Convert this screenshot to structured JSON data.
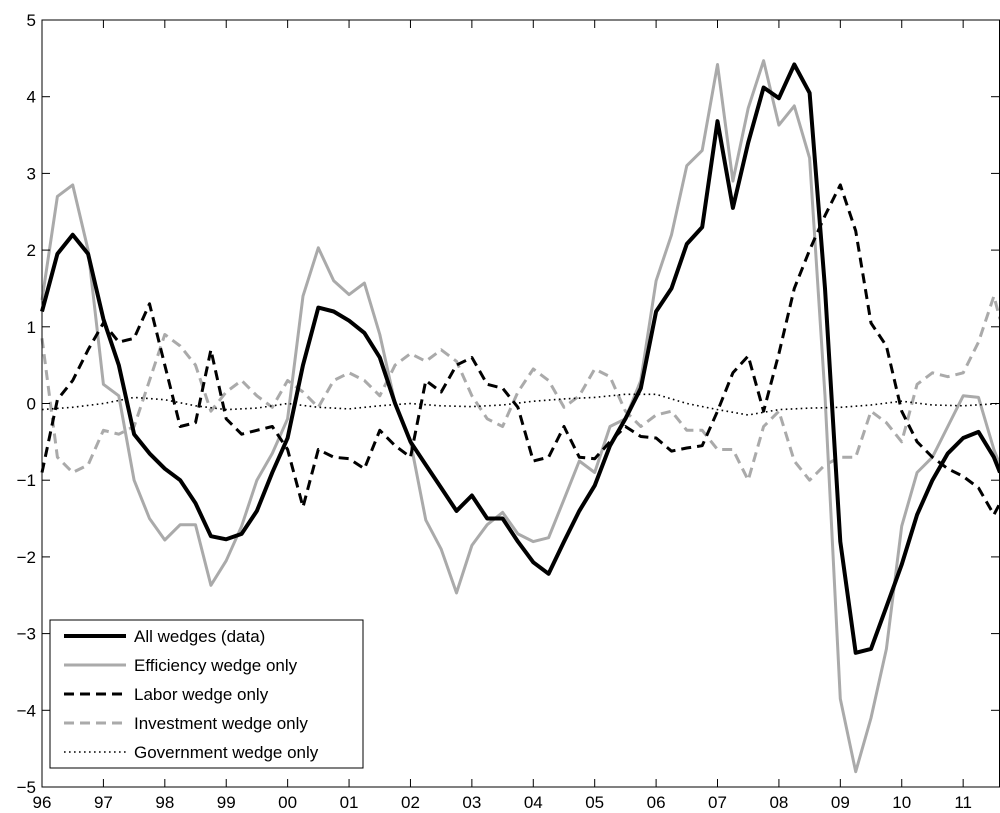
{
  "chart_data": {
    "type": "line",
    "x_ticks": [
      "96",
      "97",
      "98",
      "99",
      "00",
      "01",
      "02",
      "03",
      "04",
      "05",
      "06",
      "07",
      "08",
      "09",
      "10",
      "11"
    ],
    "y_ticks": [
      "5",
      "4",
      "3",
      "2",
      "1",
      "0",
      "−1",
      "−2",
      "−3",
      "−4",
      "−5"
    ],
    "xlim": [
      1996.0,
      2011.6
    ],
    "ylim": [
      -5,
      5
    ],
    "grid": false,
    "legend_position": "bottom-left",
    "series": [
      {
        "name": "All wedges (data)",
        "color": "#000000",
        "style": "solid",
        "weight": "thick",
        "points": [
          [
            1996.0,
            1.2
          ],
          [
            1996.25,
            1.95
          ],
          [
            1996.5,
            2.2
          ],
          [
            1996.75,
            1.95
          ],
          [
            1997.0,
            1.1
          ],
          [
            1997.25,
            0.5
          ],
          [
            1997.5,
            -0.4
          ],
          [
            1997.75,
            -0.65
          ],
          [
            1998.0,
            -0.85
          ],
          [
            1998.25,
            -1.0
          ],
          [
            1998.5,
            -1.3
          ],
          [
            1998.75,
            -1.73
          ],
          [
            1999.0,
            -1.77
          ],
          [
            1999.25,
            -1.7
          ],
          [
            1999.5,
            -1.4
          ],
          [
            1999.75,
            -0.9
          ],
          [
            2000.0,
            -0.45
          ],
          [
            2000.25,
            0.5
          ],
          [
            2000.5,
            1.25
          ],
          [
            2000.75,
            1.2
          ],
          [
            2001.0,
            1.08
          ],
          [
            2001.25,
            0.92
          ],
          [
            2001.5,
            0.6
          ],
          [
            2001.75,
            0.0
          ],
          [
            2002.0,
            -0.5
          ],
          [
            2002.25,
            -0.8
          ],
          [
            2002.5,
            -1.1
          ],
          [
            2002.75,
            -1.4
          ],
          [
            2003.0,
            -1.2
          ],
          [
            2003.25,
            -1.5
          ],
          [
            2003.5,
            -1.5
          ],
          [
            2003.75,
            -1.8
          ],
          [
            2004.0,
            -2.07
          ],
          [
            2004.25,
            -2.22
          ],
          [
            2004.5,
            -1.8
          ],
          [
            2004.75,
            -1.4
          ],
          [
            2005.0,
            -1.07
          ],
          [
            2005.25,
            -0.55
          ],
          [
            2005.5,
            -0.2
          ],
          [
            2005.75,
            0.2
          ],
          [
            2006.0,
            1.2
          ],
          [
            2006.25,
            1.5
          ],
          [
            2006.5,
            2.08
          ],
          [
            2006.75,
            2.3
          ],
          [
            2007.0,
            3.68
          ],
          [
            2007.25,
            2.55
          ],
          [
            2007.5,
            3.4
          ],
          [
            2007.75,
            4.12
          ],
          [
            2008.0,
            3.98
          ],
          [
            2008.25,
            4.42
          ],
          [
            2008.5,
            4.05
          ],
          [
            2008.75,
            1.5
          ],
          [
            2009.0,
            -1.8
          ],
          [
            2009.25,
            -3.25
          ],
          [
            2009.5,
            -3.2
          ],
          [
            2009.75,
            -2.65
          ],
          [
            2010.0,
            -2.1
          ],
          [
            2010.25,
            -1.45
          ],
          [
            2010.5,
            -1.0
          ],
          [
            2010.75,
            -0.65
          ],
          [
            2011.0,
            -0.45
          ],
          [
            2011.25,
            -0.37
          ],
          [
            2011.5,
            -0.7
          ],
          [
            2011.6,
            -0.9
          ]
        ]
      },
      {
        "name": "Efficiency wedge only",
        "color": "#aaaaaa",
        "style": "solid",
        "weight": "medium",
        "points": [
          [
            1996.0,
            1.35
          ],
          [
            1996.25,
            2.7
          ],
          [
            1996.5,
            2.85
          ],
          [
            1996.75,
            2.0
          ],
          [
            1997.0,
            0.25
          ],
          [
            1997.25,
            0.1
          ],
          [
            1997.5,
            -1.0
          ],
          [
            1997.75,
            -1.5
          ],
          [
            1998.0,
            -1.78
          ],
          [
            1998.25,
            -1.58
          ],
          [
            1998.5,
            -1.58
          ],
          [
            1998.75,
            -2.37
          ],
          [
            1999.0,
            -2.05
          ],
          [
            1999.25,
            -1.6
          ],
          [
            1999.5,
            -1.0
          ],
          [
            1999.75,
            -0.65
          ],
          [
            2000.0,
            -0.2
          ],
          [
            2000.25,
            1.4
          ],
          [
            2000.5,
            2.03
          ],
          [
            2000.75,
            1.6
          ],
          [
            2001.0,
            1.42
          ],
          [
            2001.25,
            1.57
          ],
          [
            2001.5,
            0.9
          ],
          [
            2001.75,
            0.0
          ],
          [
            2002.0,
            -0.5
          ],
          [
            2002.25,
            -1.52
          ],
          [
            2002.5,
            -1.9
          ],
          [
            2002.75,
            -2.47
          ],
          [
            2003.0,
            -1.85
          ],
          [
            2003.25,
            -1.58
          ],
          [
            2003.5,
            -1.42
          ],
          [
            2003.75,
            -1.7
          ],
          [
            2004.0,
            -1.8
          ],
          [
            2004.25,
            -1.75
          ],
          [
            2004.5,
            -1.25
          ],
          [
            2004.75,
            -0.75
          ],
          [
            2005.0,
            -0.9
          ],
          [
            2005.25,
            -0.3
          ],
          [
            2005.5,
            -0.2
          ],
          [
            2005.75,
            0.3
          ],
          [
            2006.0,
            1.6
          ],
          [
            2006.25,
            2.2
          ],
          [
            2006.5,
            3.1
          ],
          [
            2006.75,
            3.3
          ],
          [
            2007.0,
            4.42
          ],
          [
            2007.25,
            2.9
          ],
          [
            2007.5,
            3.85
          ],
          [
            2007.75,
            4.47
          ],
          [
            2008.0,
            3.63
          ],
          [
            2008.25,
            3.88
          ],
          [
            2008.5,
            3.2
          ],
          [
            2008.75,
            0.1
          ],
          [
            2009.0,
            -3.85
          ],
          [
            2009.25,
            -4.8
          ],
          [
            2009.5,
            -4.1
          ],
          [
            2009.75,
            -3.2
          ],
          [
            2010.0,
            -1.6
          ],
          [
            2010.25,
            -0.9
          ],
          [
            2010.5,
            -0.7
          ],
          [
            2010.75,
            -0.3
          ],
          [
            2011.0,
            0.1
          ],
          [
            2011.25,
            0.08
          ],
          [
            2011.5,
            -0.6
          ],
          [
            2011.6,
            -0.8
          ]
        ]
      },
      {
        "name": "Labor wedge only",
        "color": "#000000",
        "style": "dashed",
        "weight": "medium",
        "points": [
          [
            1996.0,
            -0.9
          ],
          [
            1996.25,
            0.05
          ],
          [
            1996.5,
            0.3
          ],
          [
            1996.75,
            0.7
          ],
          [
            1997.0,
            1.05
          ],
          [
            1997.25,
            0.8
          ],
          [
            1997.5,
            0.85
          ],
          [
            1997.75,
            1.3
          ],
          [
            1998.0,
            0.5
          ],
          [
            1998.25,
            -0.3
          ],
          [
            1998.5,
            -0.25
          ],
          [
            1998.75,
            0.7
          ],
          [
            1999.0,
            -0.2
          ],
          [
            1999.25,
            -0.4
          ],
          [
            1999.5,
            -0.35
          ],
          [
            1999.75,
            -0.3
          ],
          [
            2000.0,
            -0.6
          ],
          [
            2000.25,
            -1.35
          ],
          [
            2000.5,
            -0.6
          ],
          [
            2000.75,
            -0.7
          ],
          [
            2001.0,
            -0.72
          ],
          [
            2001.25,
            -0.85
          ],
          [
            2001.5,
            -0.35
          ],
          [
            2001.75,
            -0.55
          ],
          [
            2002.0,
            -0.7
          ],
          [
            2002.25,
            0.3
          ],
          [
            2002.5,
            0.15
          ],
          [
            2002.75,
            0.5
          ],
          [
            2003.0,
            0.6
          ],
          [
            2003.25,
            0.25
          ],
          [
            2003.5,
            0.2
          ],
          [
            2003.75,
            -0.05
          ],
          [
            2004.0,
            -0.75
          ],
          [
            2004.25,
            -0.7
          ],
          [
            2004.5,
            -0.3
          ],
          [
            2004.75,
            -0.7
          ],
          [
            2005.0,
            -0.72
          ],
          [
            2005.25,
            -0.5
          ],
          [
            2005.5,
            -0.3
          ],
          [
            2005.75,
            -0.43
          ],
          [
            2006.0,
            -0.45
          ],
          [
            2006.25,
            -0.62
          ],
          [
            2006.5,
            -0.58
          ],
          [
            2006.75,
            -0.55
          ],
          [
            2007.0,
            -0.1
          ],
          [
            2007.25,
            0.4
          ],
          [
            2007.5,
            0.62
          ],
          [
            2007.75,
            -0.1
          ],
          [
            2008.0,
            0.65
          ],
          [
            2008.25,
            1.5
          ],
          [
            2008.5,
            2.0
          ],
          [
            2008.75,
            2.45
          ],
          [
            2009.0,
            2.85
          ],
          [
            2009.25,
            2.25
          ],
          [
            2009.5,
            1.05
          ],
          [
            2009.75,
            0.75
          ],
          [
            2010.0,
            -0.1
          ],
          [
            2010.25,
            -0.5
          ],
          [
            2010.5,
            -0.7
          ],
          [
            2010.75,
            -0.85
          ],
          [
            2011.0,
            -0.95
          ],
          [
            2011.25,
            -1.1
          ],
          [
            2011.5,
            -1.45
          ],
          [
            2011.6,
            -1.3
          ]
        ]
      },
      {
        "name": "Investment wedge only",
        "color": "#aaaaaa",
        "style": "dashed",
        "weight": "medium",
        "points": [
          [
            1996.0,
            0.85
          ],
          [
            1996.25,
            -0.7
          ],
          [
            1996.5,
            -0.9
          ],
          [
            1996.75,
            -0.8
          ],
          [
            1997.0,
            -0.35
          ],
          [
            1997.25,
            -0.4
          ],
          [
            1997.5,
            -0.3
          ],
          [
            1997.75,
            0.3
          ],
          [
            1998.0,
            0.9
          ],
          [
            1998.25,
            0.75
          ],
          [
            1998.5,
            0.5
          ],
          [
            1998.75,
            -0.1
          ],
          [
            1999.0,
            0.15
          ],
          [
            1999.25,
            0.3
          ],
          [
            1999.5,
            0.1
          ],
          [
            1999.75,
            -0.05
          ],
          [
            2000.0,
            0.3
          ],
          [
            2000.25,
            0.15
          ],
          [
            2000.5,
            -0.05
          ],
          [
            2000.75,
            0.3
          ],
          [
            2001.0,
            0.4
          ],
          [
            2001.25,
            0.3
          ],
          [
            2001.5,
            0.1
          ],
          [
            2001.75,
            0.5
          ],
          [
            2002.0,
            0.65
          ],
          [
            2002.25,
            0.55
          ],
          [
            2002.5,
            0.7
          ],
          [
            2002.75,
            0.55
          ],
          [
            2003.0,
            0.1
          ],
          [
            2003.25,
            -0.2
          ],
          [
            2003.5,
            -0.3
          ],
          [
            2003.75,
            0.15
          ],
          [
            2004.0,
            0.45
          ],
          [
            2004.25,
            0.3
          ],
          [
            2004.5,
            -0.05
          ],
          [
            2004.75,
            0.1
          ],
          [
            2005.0,
            0.45
          ],
          [
            2005.25,
            0.35
          ],
          [
            2005.5,
            -0.1
          ],
          [
            2005.75,
            -0.3
          ],
          [
            2006.0,
            -0.15
          ],
          [
            2006.25,
            -0.1
          ],
          [
            2006.5,
            -0.35
          ],
          [
            2006.75,
            -0.35
          ],
          [
            2007.0,
            -0.6
          ],
          [
            2007.25,
            -0.6
          ],
          [
            2007.5,
            -1.0
          ],
          [
            2007.75,
            -0.3
          ],
          [
            2008.0,
            -0.1
          ],
          [
            2008.25,
            -0.75
          ],
          [
            2008.5,
            -1.0
          ],
          [
            2008.75,
            -0.8
          ],
          [
            2009.0,
            -0.7
          ],
          [
            2009.25,
            -0.7
          ],
          [
            2009.5,
            -0.1
          ],
          [
            2009.75,
            -0.25
          ],
          [
            2010.0,
            -0.5
          ],
          [
            2010.25,
            0.25
          ],
          [
            2010.5,
            0.4
          ],
          [
            2010.75,
            0.35
          ],
          [
            2011.0,
            0.4
          ],
          [
            2011.25,
            0.8
          ],
          [
            2011.5,
            1.4
          ],
          [
            2011.6,
            1.1
          ]
        ]
      },
      {
        "name": "Government wedge only",
        "color": "#000000",
        "style": "dotted",
        "weight": "thin",
        "points": [
          [
            1996.0,
            -0.08
          ],
          [
            1996.5,
            -0.05
          ],
          [
            1997.0,
            0.0
          ],
          [
            1997.5,
            0.08
          ],
          [
            1998.0,
            0.05
          ],
          [
            1998.5,
            -0.03
          ],
          [
            1999.0,
            -0.08
          ],
          [
            1999.5,
            -0.06
          ],
          [
            2000.0,
            0.0
          ],
          [
            2000.5,
            -0.05
          ],
          [
            2001.0,
            -0.07
          ],
          [
            2001.5,
            -0.03
          ],
          [
            2002.0,
            0.0
          ],
          [
            2002.5,
            -0.03
          ],
          [
            2003.0,
            -0.04
          ],
          [
            2003.5,
            -0.02
          ],
          [
            2004.0,
            0.03
          ],
          [
            2004.5,
            0.06
          ],
          [
            2005.0,
            0.08
          ],
          [
            2005.5,
            0.12
          ],
          [
            2006.0,
            0.12
          ],
          [
            2006.5,
            0.0
          ],
          [
            2007.0,
            -0.08
          ],
          [
            2007.5,
            -0.15
          ],
          [
            2008.0,
            -0.08
          ],
          [
            2008.5,
            -0.06
          ],
          [
            2009.0,
            -0.05
          ],
          [
            2009.5,
            -0.02
          ],
          [
            2010.0,
            0.03
          ],
          [
            2010.5,
            -0.02
          ],
          [
            2011.0,
            -0.03
          ],
          [
            2011.6,
            0.0
          ]
        ]
      }
    ]
  }
}
